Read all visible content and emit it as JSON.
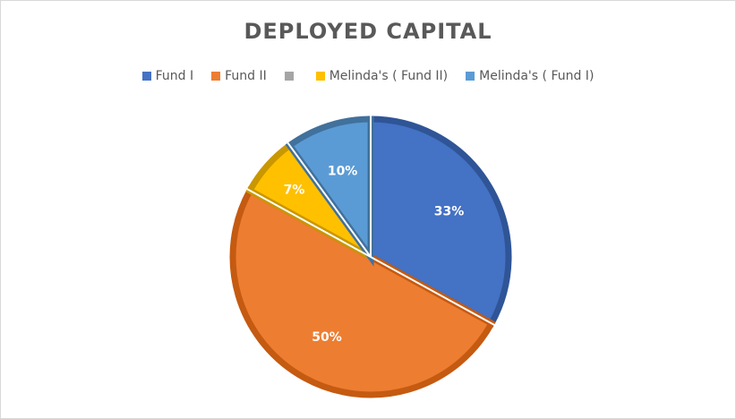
{
  "chart_data": {
    "type": "pie",
    "title": "DEPLOYED CAPITAL",
    "legend_position": "top",
    "categories": [
      "Fund I",
      "Fund II",
      "",
      "Melinda's ( Fund II)",
      "Melinda's ( Fund I)"
    ],
    "values": [
      33,
      50,
      0,
      7,
      10
    ],
    "labels": [
      "33%",
      "50%",
      "",
      "7%",
      "10%"
    ],
    "colors": [
      "#4472c4",
      "#ed7d31",
      "#a5a5a5",
      "#ffc000",
      "#5b9bd5"
    ],
    "border_colors": [
      "#2f5597",
      "#c55a11",
      "#7f7f7f",
      "#c99700",
      "#41719c"
    ]
  }
}
